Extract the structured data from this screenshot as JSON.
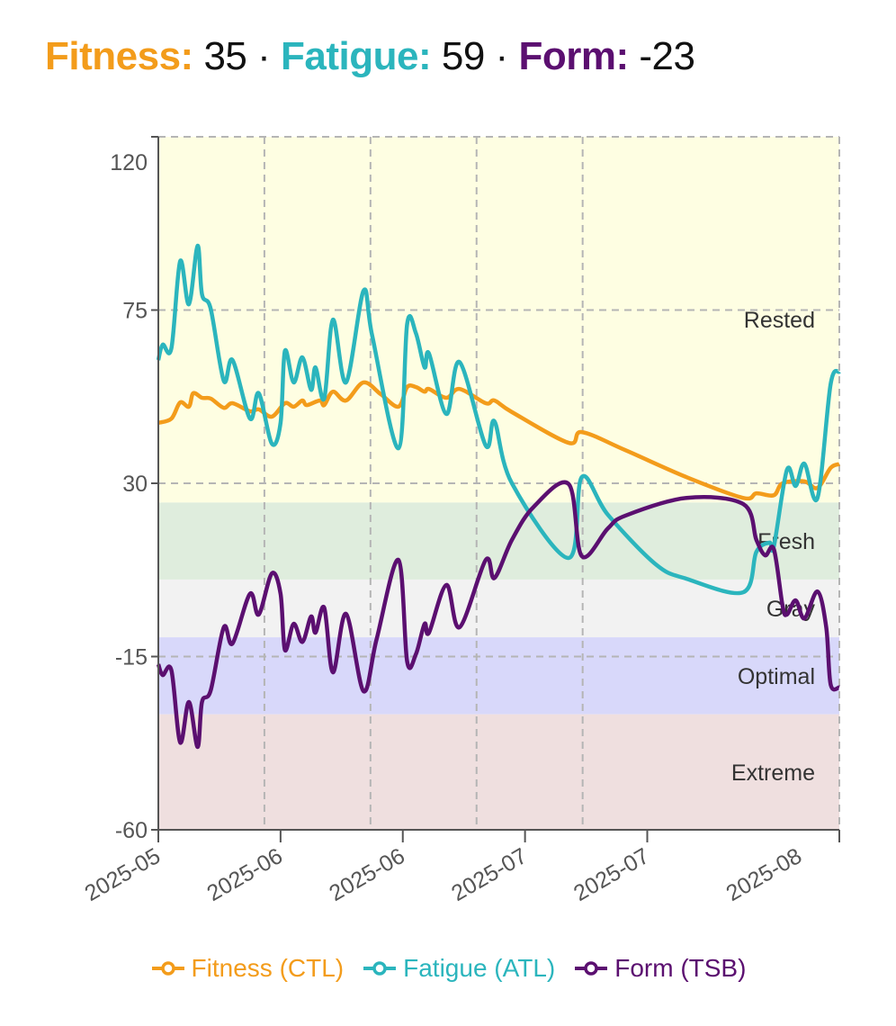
{
  "header": {
    "fitness_label": "Fitness:",
    "fitness_value": "35",
    "fatigue_label": "Fatigue:",
    "fatigue_value": "59",
    "form_label": "Form:",
    "form_value": "-23",
    "separator": "·"
  },
  "colors": {
    "fitness": "#f39c1b",
    "fatigue": "#2bb5bd",
    "form": "#5b0f70",
    "axis": "#555555",
    "grid": "#b5b5b5"
  },
  "chart_data": {
    "type": "line",
    "title": "",
    "xlabel": "",
    "ylabel": "",
    "xlim": [
      "2025-05-25",
      "2025-08-11"
    ],
    "ylim": [
      -60,
      120
    ],
    "y_ticks": [
      120,
      75,
      30,
      -15,
      -60
    ],
    "x_ticks": [
      {
        "date": "2025-05-25",
        "label": "2025-05"
      },
      {
        "date": "2025-06-08",
        "label": "2025-06"
      },
      {
        "date": "2025-06-22",
        "label": "2025-06"
      },
      {
        "date": "2025-07-06",
        "label": "2025-07"
      },
      {
        "date": "2025-07-20",
        "label": "2025-07"
      },
      {
        "date": "2025-08-11",
        "label": "2025-08"
      }
    ],
    "grid": true,
    "legend_placement": "bottom",
    "zones": [
      {
        "name": "Rested",
        "from": 25,
        "to": 120,
        "color": "#fefee2"
      },
      {
        "name": "Fresh",
        "from": 5,
        "to": 25,
        "color": "#dfeddd"
      },
      {
        "name": "Gray",
        "from": -10,
        "to": 5,
        "color": "#f2f2f2"
      },
      {
        "name": "Optimal",
        "from": -30,
        "to": -10,
        "color": "#d8d8fa"
      },
      {
        "name": "Extreme",
        "from": -60,
        "to": -30,
        "color": "#efdfdf"
      }
    ],
    "series": [
      {
        "name": "Fitness (CTL)",
        "color": "#f39c1b",
        "points": [
          [
            "2025-05-25",
            45.7
          ],
          [
            "2025-05-26T12",
            46.8
          ],
          [
            "2025-05-27T12",
            51.0
          ],
          [
            "2025-05-28T12",
            49.9
          ],
          [
            "2025-05-29",
            53.4
          ],
          [
            "2025-05-30",
            52.2
          ],
          [
            "2025-05-31",
            52.0
          ],
          [
            "2025-06-01T12",
            49.6
          ],
          [
            "2025-06-02T12",
            50.8
          ],
          [
            "2025-06-04T12",
            48.7
          ],
          [
            "2025-06-05T12",
            49.2
          ],
          [
            "2025-06-07",
            47.3
          ],
          [
            "2025-06-08T12",
            50.8
          ],
          [
            "2025-06-09T12",
            49.9
          ],
          [
            "2025-06-10T12",
            51.5
          ],
          [
            "2025-06-11",
            50.3
          ],
          [
            "2025-06-12T12",
            51.5
          ],
          [
            "2025-06-13",
            50.3
          ],
          [
            "2025-06-14",
            53.8
          ],
          [
            "2025-06-15T12",
            51.5
          ],
          [
            "2025-06-17T12",
            56.2
          ],
          [
            "2025-06-19T12",
            53.1
          ],
          [
            "2025-06-21T12",
            49.9
          ],
          [
            "2025-06-22T12",
            55.0
          ],
          [
            "2025-06-23T12",
            55.0
          ],
          [
            "2025-06-24T12",
            53.8
          ],
          [
            "2025-06-25",
            54.5
          ],
          [
            "2025-06-27",
            52.2
          ],
          [
            "2025-06-28T12",
            54.5
          ],
          [
            "2025-07-01T12",
            50.8
          ],
          [
            "2025-07-02T12",
            51.5
          ],
          [
            "2025-07-04T12",
            48.5
          ],
          [
            "2025-07-11",
            40.5
          ],
          [
            "2025-07-12T12",
            43.3
          ],
          [
            "2025-07-17T12",
            38.6
          ],
          [
            "2025-07-24T12",
            31.6
          ],
          [
            "2025-07-31",
            26.2
          ],
          [
            "2025-08-01T12",
            27.4
          ],
          [
            "2025-08-03T12",
            26.9
          ],
          [
            "2025-08-04T12",
            30.0
          ],
          [
            "2025-08-07",
            30.5
          ],
          [
            "2025-08-08T12",
            28.8
          ],
          [
            "2025-08-10",
            34.0
          ],
          [
            "2025-08-11",
            35
          ]
        ]
      },
      {
        "name": "Fatigue (ATL)",
        "color": "#2bb5bd",
        "points": [
          [
            "2025-05-25",
            62.0
          ],
          [
            "2025-05-25T12",
            66.0
          ],
          [
            "2025-05-26T12",
            65.1
          ],
          [
            "2025-05-27T12",
            87.7
          ],
          [
            "2025-05-28T12",
            76.5
          ],
          [
            "2025-05-29T12",
            91.7
          ],
          [
            "2025-05-30",
            79.1
          ],
          [
            "2025-05-31",
            75.3
          ],
          [
            "2025-06-01T12",
            56.6
          ],
          [
            "2025-06-02T12",
            62.0
          ],
          [
            "2025-06-04T12",
            46.8
          ],
          [
            "2025-06-05T12",
            53.4
          ],
          [
            "2025-06-07",
            40.3
          ],
          [
            "2025-06-08",
            45.7
          ],
          [
            "2025-06-08T12",
            64.4
          ],
          [
            "2025-06-09T12",
            56.2
          ],
          [
            "2025-06-10T12",
            62.7
          ],
          [
            "2025-06-11T12",
            54.3
          ],
          [
            "2025-06-12",
            60.1
          ],
          [
            "2025-06-13",
            52.0
          ],
          [
            "2025-06-14",
            72.5
          ],
          [
            "2025-06-15T12",
            56.2
          ],
          [
            "2025-06-17T12",
            80.0
          ],
          [
            "2025-06-18T12",
            68.3
          ],
          [
            "2025-06-21T12",
            39.1
          ],
          [
            "2025-06-22T12",
            71.4
          ],
          [
            "2025-06-23T12",
            69.0
          ],
          [
            "2025-06-24T12",
            60.1
          ],
          [
            "2025-06-25",
            63.7
          ],
          [
            "2025-06-27",
            48.0
          ],
          [
            "2025-06-28T12",
            61.5
          ],
          [
            "2025-07-01T12",
            39.8
          ],
          [
            "2025-07-02T12",
            46.1
          ],
          [
            "2025-07-04T12",
            30.0
          ],
          [
            "2025-07-11",
            10.6
          ],
          [
            "2025-07-12T12",
            31.6
          ],
          [
            "2025-07-15T12",
            21.8
          ],
          [
            "2025-07-21",
            8.9
          ],
          [
            "2025-07-24T12",
            5.2
          ],
          [
            "2025-07-31",
            1.7
          ],
          [
            "2025-08-01T12",
            12.2
          ],
          [
            "2025-08-03",
            14.6
          ],
          [
            "2025-08-03T12",
            13.6
          ],
          [
            "2025-08-05",
            33.5
          ],
          [
            "2025-08-06",
            29.3
          ],
          [
            "2025-08-07",
            35.1
          ],
          [
            "2025-08-08T12",
            26.2
          ],
          [
            "2025-08-10",
            55.7
          ],
          [
            "2025-08-11",
            59
          ]
        ]
      },
      {
        "name": "Form (TSB)",
        "color": "#5b0f70",
        "points": [
          [
            "2025-05-25",
            -17.0
          ],
          [
            "2025-05-25T12",
            -19.8
          ],
          [
            "2025-05-26T12",
            -18.6
          ],
          [
            "2025-05-27T12",
            -37.3
          ],
          [
            "2025-05-28T12",
            -26.8
          ],
          [
            "2025-05-29T12",
            -38.5
          ],
          [
            "2025-05-30",
            -26.8
          ],
          [
            "2025-05-31",
            -23.8
          ],
          [
            "2025-06-01T12",
            -7.4
          ],
          [
            "2025-06-02T12",
            -11.6
          ],
          [
            "2025-06-04T12",
            1.3
          ],
          [
            "2025-06-05T12",
            -4.1
          ],
          [
            "2025-06-07",
            6.6
          ],
          [
            "2025-06-08",
            1.3
          ],
          [
            "2025-06-08T12",
            -13.3
          ],
          [
            "2025-06-09T12",
            -6.5
          ],
          [
            "2025-06-10T12",
            -11.2
          ],
          [
            "2025-06-11T12",
            -4.6
          ],
          [
            "2025-06-12",
            -8.8
          ],
          [
            "2025-06-13",
            -2.3
          ],
          [
            "2025-06-14",
            -19.1
          ],
          [
            "2025-06-15T12",
            -3.9
          ],
          [
            "2025-06-17T12",
            -24.0
          ],
          [
            "2025-06-19",
            -10.5
          ],
          [
            "2025-06-21T12",
            10.1
          ],
          [
            "2025-06-22T12",
            -16.3
          ],
          [
            "2025-06-23T12",
            -14.4
          ],
          [
            "2025-06-24T12",
            -6.5
          ],
          [
            "2025-06-25",
            -8.8
          ],
          [
            "2025-06-27",
            3.6
          ],
          [
            "2025-06-28T12",
            -7.4
          ],
          [
            "2025-07-01T12",
            10.1
          ],
          [
            "2025-07-02T12",
            5.4
          ],
          [
            "2025-07-04T12",
            15.3
          ],
          [
            "2025-07-07",
            23.9
          ],
          [
            "2025-07-11",
            29.8
          ],
          [
            "2025-07-12T12",
            11.1
          ],
          [
            "2025-07-15T12",
            18.3
          ],
          [
            "2025-07-17T12",
            21.6
          ],
          [
            "2025-07-24T12",
            26.2
          ],
          [
            "2025-07-31",
            24.6
          ],
          [
            "2025-08-01T12",
            15.3
          ],
          [
            "2025-08-02T12",
            11.3
          ],
          [
            "2025-08-03T12",
            12.9
          ],
          [
            "2025-08-04T12",
            -1.8
          ],
          [
            "2025-08-05",
            -4.1
          ],
          [
            "2025-08-06",
            -0.4
          ],
          [
            "2025-08-07",
            -5.1
          ],
          [
            "2025-08-08T12",
            1.9
          ],
          [
            "2025-08-09T12",
            -7.4
          ],
          [
            "2025-08-10",
            -22.2
          ],
          [
            "2025-08-11",
            -23
          ]
        ]
      }
    ]
  }
}
